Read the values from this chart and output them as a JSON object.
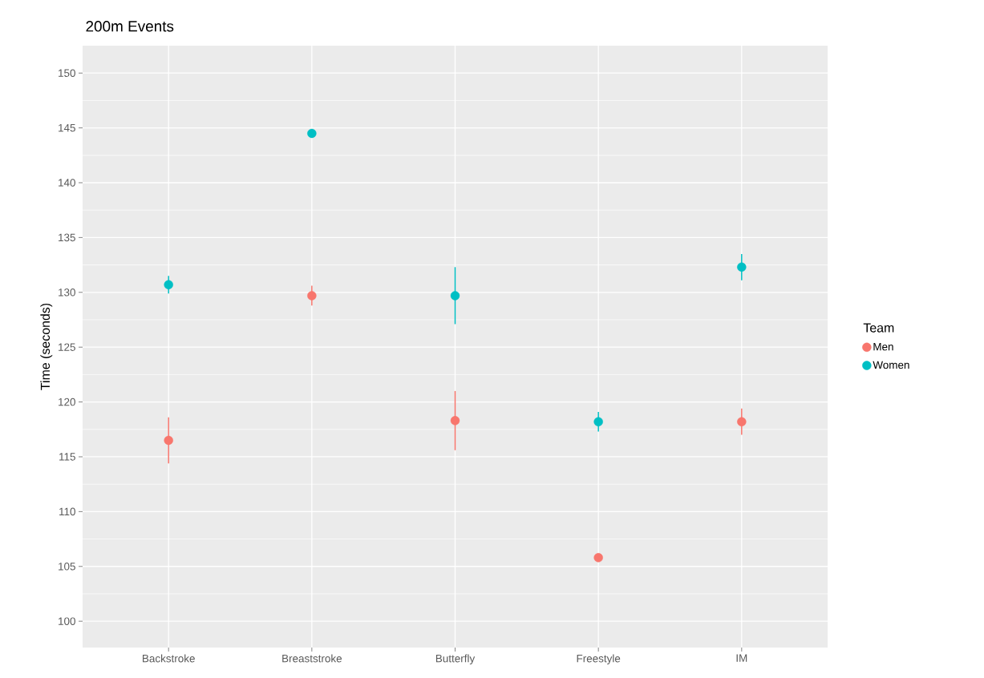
{
  "chart_data": {
    "type": "scatter",
    "title": "200m Events",
    "ylabel": "Time (seconds)",
    "legend_title": "Team",
    "categories": [
      "Backstroke",
      "Breaststroke",
      "Butterfly",
      "Freestyle",
      "IM"
    ],
    "series": [
      {
        "name": "Men",
        "color": "#f8766d",
        "values": [
          116.5,
          129.7,
          118.3,
          105.8,
          118.2
        ],
        "errors": [
          2.1,
          0.9,
          2.7,
          null,
          1.2
        ]
      },
      {
        "name": "Women",
        "color": "#00bfc4",
        "values": [
          130.7,
          144.5,
          129.7,
          118.2,
          132.3
        ],
        "errors": [
          0.8,
          null,
          2.6,
          0.9,
          1.2
        ]
      }
    ],
    "ylim": [
      97.6,
      152.5
    ],
    "yticks": [
      100,
      105,
      110,
      115,
      120,
      125,
      130,
      135,
      140,
      145,
      150
    ],
    "grid": true,
    "legend": "right"
  }
}
